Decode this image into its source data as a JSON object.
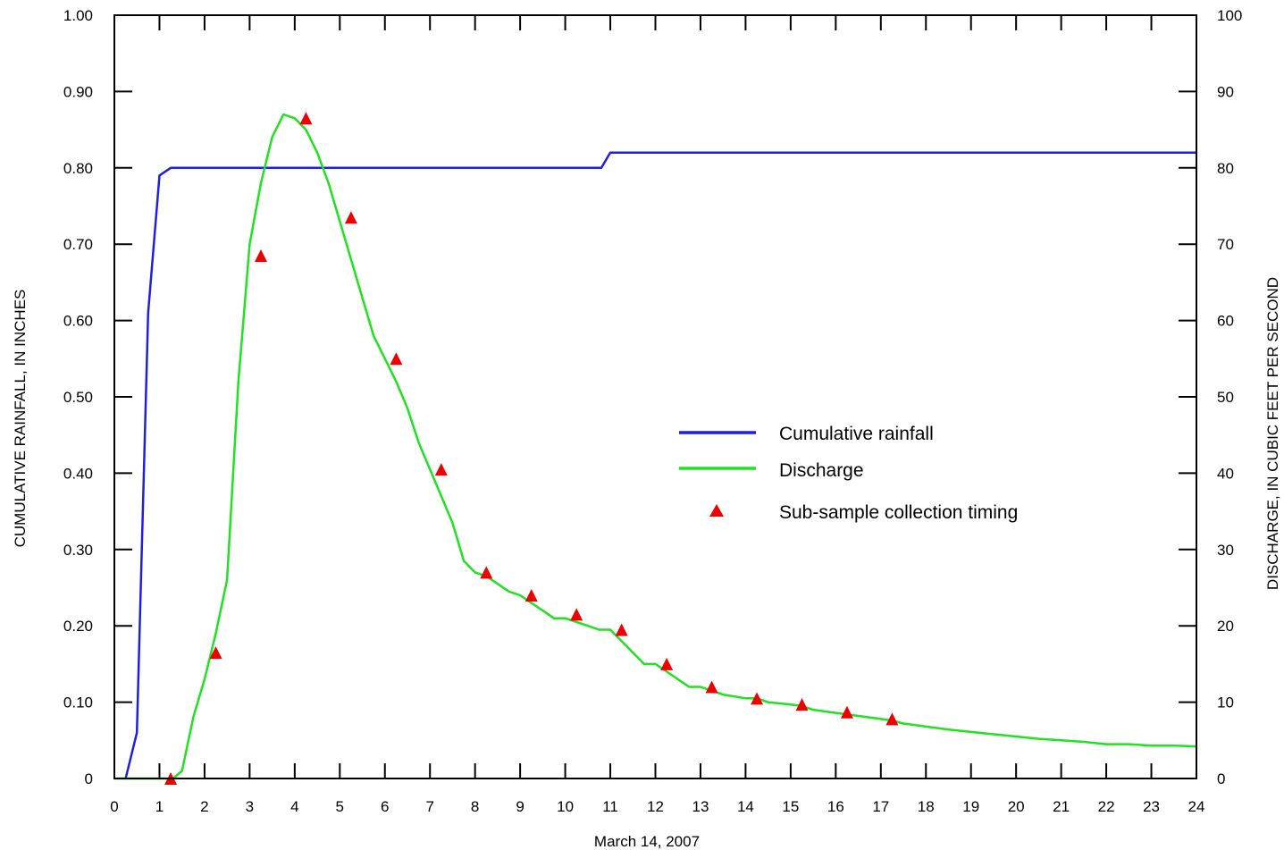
{
  "chart_data": {
    "type": "line",
    "title": "",
    "xlabel": "March 14, 2007",
    "ylabel_left": "CUMULATIVE RAINFALL, IN INCHES",
    "ylabel_right": "DISCHARGE, IN CUBIC FEET PER SECOND",
    "xlim": [
      0,
      24
    ],
    "ylim_left": [
      0,
      1.0
    ],
    "ylim_right": [
      0,
      100
    ],
    "x_ticks": [
      "0",
      "1",
      "2",
      "3",
      "4",
      "5",
      "6",
      "7",
      "8",
      "9",
      "10",
      "11",
      "12",
      "13",
      "14",
      "15",
      "16",
      "17",
      "18",
      "19",
      "20",
      "21",
      "22",
      "23",
      "24"
    ],
    "y_left_ticks": [
      "0",
      "0.10",
      "0.20",
      "0.30",
      "0.40",
      "0.50",
      "0.60",
      "0.70",
      "0.80",
      "0.90",
      "1.00"
    ],
    "y_right_ticks": [
      "0",
      "10",
      "20",
      "30",
      "40",
      "50",
      "60",
      "70",
      "80",
      "90",
      "100"
    ],
    "grid": false,
    "legend_position": "center-right",
    "series": [
      {
        "name": "Cumulative rainfall",
        "axis": "left",
        "color": "#1f1fe0",
        "x": [
          0.25,
          0.5,
          0.75,
          1.0,
          1.25,
          2.0,
          5.0,
          10.0,
          10.8,
          11.0,
          12.0,
          24.0
        ],
        "y": [
          0.0,
          0.06,
          0.61,
          0.79,
          0.8,
          0.8,
          0.8,
          0.8,
          0.8,
          0.82,
          0.82,
          0.82
        ]
      },
      {
        "name": "Discharge",
        "axis": "right",
        "color": "#22e022",
        "x": [
          0,
          0.5,
          1.0,
          1.3,
          1.5,
          1.75,
          2.0,
          2.25,
          2.5,
          2.75,
          3.0,
          3.25,
          3.5,
          3.75,
          4.0,
          4.25,
          4.5,
          4.75,
          5.0,
          5.25,
          5.5,
          5.75,
          6.0,
          6.25,
          6.5,
          6.75,
          7.0,
          7.25,
          7.5,
          7.75,
          8.0,
          8.25,
          8.5,
          8.75,
          9.0,
          9.25,
          9.5,
          9.75,
          10.0,
          10.25,
          10.5,
          10.75,
          11.0,
          11.25,
          11.5,
          11.75,
          12.0,
          12.25,
          12.5,
          12.75,
          13.0,
          13.25,
          13.5,
          14.0,
          14.25,
          14.5,
          15.0,
          15.25,
          15.5,
          16.0,
          16.25,
          16.5,
          17.0,
          17.25,
          17.5,
          18.0,
          18.5,
          19.0,
          19.5,
          20.0,
          20.5,
          21.0,
          21.5,
          22.0,
          22.5,
          23.0,
          23.5,
          24.0
        ],
        "y": [
          0,
          0,
          0,
          0,
          1,
          8,
          13,
          19,
          26,
          52,
          70,
          78,
          84,
          87,
          86.5,
          85,
          82,
          78,
          73,
          68,
          63,
          58,
          55,
          52,
          48.5,
          44,
          40.5,
          37,
          33.5,
          28.5,
          27,
          26.5,
          25.5,
          24.5,
          24,
          23,
          22,
          21,
          21,
          20.5,
          20,
          19.5,
          19.5,
          18,
          16.5,
          15,
          15,
          14,
          13,
          12,
          12,
          11.5,
          11,
          10.5,
          10.5,
          10,
          9.7,
          9.5,
          9,
          8.6,
          8.4,
          8.2,
          7.8,
          7.6,
          7.2,
          6.8,
          6.4,
          6.1,
          5.8,
          5.5,
          5.2,
          5.0,
          4.8,
          4.5,
          4.5,
          4.3,
          4.3,
          4.2
        ]
      },
      {
        "name": "Sub-sample collection timing",
        "axis": "right",
        "color": "#ee0000",
        "marker": "triangle",
        "x": [
          1.25,
          2.25,
          3.25,
          4.25,
          5.25,
          6.25,
          7.25,
          8.25,
          9.25,
          10.25,
          11.25,
          12.25,
          13.25,
          14.25,
          15.25,
          16.25,
          17.25
        ],
        "y": [
          0,
          16.5,
          68.5,
          86.5,
          73.5,
          55,
          40.5,
          27,
          24,
          21.5,
          19.5,
          15,
          12,
          10.5,
          9.7,
          8.7,
          7.8
        ]
      }
    ]
  }
}
